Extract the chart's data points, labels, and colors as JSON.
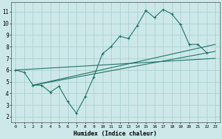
{
  "xlabel": "Humidex (Indice chaleur)",
  "background_color": "#cce8e8",
  "grid_color": "#aacfcf",
  "line_color": "#1a6e65",
  "xlim": [
    -0.5,
    23.5
  ],
  "ylim": [
    1.5,
    11.8
  ],
  "xticks": [
    0,
    1,
    2,
    3,
    4,
    5,
    6,
    7,
    8,
    9,
    10,
    11,
    12,
    13,
    14,
    15,
    16,
    17,
    18,
    19,
    20,
    21,
    22,
    23
  ],
  "yticks": [
    2,
    3,
    4,
    5,
    6,
    7,
    8,
    9,
    10,
    11
  ],
  "line1_x": [
    0,
    1,
    2,
    3,
    4,
    5,
    6,
    7,
    8,
    9,
    10,
    11,
    12,
    13,
    14,
    15,
    16,
    17,
    18,
    19,
    20,
    21,
    22
  ],
  "line1_y": [
    6.0,
    5.8,
    4.7,
    4.7,
    4.1,
    4.6,
    3.3,
    2.3,
    3.7,
    5.4,
    7.4,
    8.0,
    8.9,
    8.7,
    9.8,
    11.1,
    10.5,
    11.2,
    10.8,
    9.9,
    8.2,
    8.2,
    7.5
  ],
  "line2_x": [
    0,
    23
  ],
  "line2_y": [
    6.0,
    7.0
  ],
  "line3_x": [
    2,
    23
  ],
  "line3_y": [
    4.7,
    7.6
  ],
  "line4_x": [
    2,
    23
  ],
  "line4_y": [
    4.7,
    8.2
  ]
}
